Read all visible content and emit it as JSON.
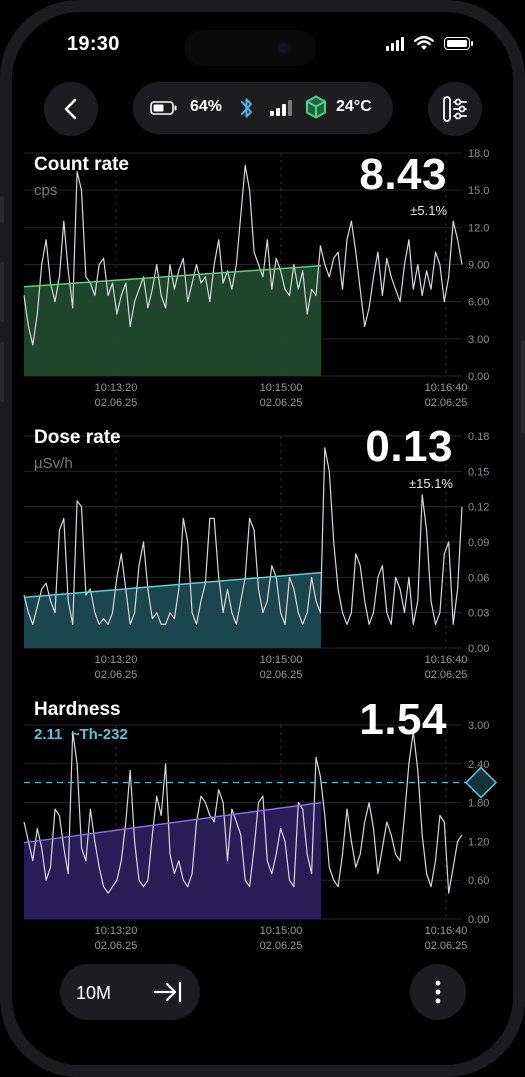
{
  "status_bar": {
    "time": "19:30"
  },
  "header": {
    "battery_percent": "64%",
    "temperature": "24°C",
    "icons": [
      "back-arrow-icon",
      "battery-icon",
      "bluetooth-icon",
      "signal-bars-icon",
      "cube-icon",
      "sliders-icon"
    ]
  },
  "panels": {
    "count": {
      "title": "Count rate",
      "unit": "cps",
      "value": "8.43",
      "error": "±5.1%",
      "y_ticks": [
        "18.0",
        "15.0",
        "12.0",
        "9.00",
        "6.00",
        "3.00",
        "0.00"
      ]
    },
    "dose": {
      "title": "Dose rate",
      "unit": "µSv/h",
      "value": "0.13",
      "error": "±15.1%",
      "y_ticks": [
        "0.18",
        "0.15",
        "0.12",
        "0.09",
        "0.06",
        "0.03",
        "0.00"
      ]
    },
    "hardness": {
      "title": "Hardness",
      "value": "1.54",
      "marker_value": "2.11",
      "isotope": "~Th-232",
      "y_ticks": [
        "3.00",
        "2.40",
        "1.80",
        "1.20",
        "0.60",
        "0.00"
      ]
    }
  },
  "x_ticks": [
    {
      "time": "10:13:20",
      "date": "02.06.25"
    },
    {
      "time": "10:15:00",
      "date": "02.06.25"
    },
    {
      "time": "10:16:40",
      "date": "02.06.25"
    }
  ],
  "bottom_bar": {
    "range_label": "10M"
  },
  "colors": {
    "count_fill": "#1f4a2c",
    "count_line": "#5fd07f",
    "dose_fill": "#1d4a52",
    "dose_line": "#5ad0e0",
    "hardness_fill": "#2a1f5c",
    "hardness_line": "#8a6cf0",
    "accent": "#57c4dc"
  },
  "chart_data": [
    {
      "type": "line",
      "title": "Count rate",
      "ylabel": "cps",
      "ylim": [
        0,
        18
      ],
      "x_tick_labels": [
        "10:13:20 02.06.25",
        "10:15:00 02.06.25",
        "10:16:40 02.06.25"
      ],
      "series": [
        {
          "values": [
            6.5,
            4.0,
            2.5,
            5.0,
            9.0,
            11.0,
            7.5,
            6.0,
            8.0,
            12.5,
            8.5,
            5.5,
            16.5,
            15.0,
            8.0,
            7.5,
            6.5,
            9.0,
            9.5,
            6.5,
            7.5,
            5.0,
            6.5,
            7.5,
            4.0,
            6.0,
            7.0,
            8.0,
            5.5,
            7.0,
            9.0,
            6.5,
            5.5,
            9.0,
            7.0,
            8.5,
            9.5,
            6.0,
            7.5,
            9.0,
            7.5,
            8.0,
            6.0,
            9.0,
            11.0,
            7.5,
            8.5,
            7.0,
            9.0,
            13.0,
            17.0,
            15.0,
            10.0,
            9.0,
            8.0,
            11.0,
            7.0,
            9.5,
            8.5,
            7.0,
            6.5,
            9.0,
            7.0,
            8.5,
            5.0,
            7.0,
            6.5,
            10.5,
            9.0,
            8.0,
            9.5,
            10.0,
            7.0,
            11.0,
            12.5,
            10.0,
            7.0,
            4.0,
            5.5,
            8.0,
            10.0,
            6.5,
            9.5,
            8.0,
            7.0,
            6.0,
            9.0,
            11.0,
            7.0,
            9.0,
            6.5,
            8.5,
            7.0,
            10.0,
            9.0,
            6.0,
            8.0,
            12.5,
            11.0,
            9.0
          ]
        }
      ],
      "trend": [
        7.2,
        8.9
      ]
    },
    {
      "type": "line",
      "title": "Dose rate",
      "ylabel": "µSv/h",
      "ylim": [
        0,
        0.18
      ],
      "x_tick_labels": [
        "10:13:20 02.06.25",
        "10:15:00 02.06.25",
        "10:16:40 02.06.25"
      ],
      "series": [
        {
          "values": [
            0.045,
            0.03,
            0.02,
            0.035,
            0.05,
            0.055,
            0.04,
            0.03,
            0.1,
            0.11,
            0.04,
            0.02,
            0.125,
            0.12,
            0.045,
            0.05,
            0.03,
            0.02,
            0.025,
            0.02,
            0.03,
            0.06,
            0.08,
            0.05,
            0.02,
            0.03,
            0.07,
            0.09,
            0.05,
            0.025,
            0.03,
            0.02,
            0.02,
            0.03,
            0.025,
            0.05,
            0.11,
            0.09,
            0.03,
            0.02,
            0.04,
            0.055,
            0.11,
            0.11,
            0.06,
            0.03,
            0.05,
            0.03,
            0.02,
            0.04,
            0.06,
            0.11,
            0.1,
            0.05,
            0.03,
            0.04,
            0.07,
            0.06,
            0.03,
            0.02,
            0.06,
            0.05,
            0.03,
            0.02,
            0.03,
            0.06,
            0.04,
            0.03,
            0.17,
            0.15,
            0.09,
            0.05,
            0.03,
            0.02,
            0.03,
            0.08,
            0.07,
            0.04,
            0.02,
            0.03,
            0.06,
            0.07,
            0.03,
            0.02,
            0.06,
            0.05,
            0.03,
            0.06,
            0.02,
            0.04,
            0.13,
            0.1,
            0.04,
            0.02,
            0.03,
            0.08,
            0.09,
            0.02,
            0.05,
            0.12
          ]
        }
      ],
      "trend": [
        0.043,
        0.064
      ]
    },
    {
      "type": "line",
      "title": "Hardness",
      "ylim": [
        0,
        3.0
      ],
      "x_tick_labels": [
        "10:13:20 02.06.25",
        "10:15:00 02.06.25",
        "10:16:40 02.06.25"
      ],
      "reference_line": 2.11,
      "series": [
        {
          "values": [
            1.5,
            1.2,
            0.9,
            1.4,
            1.1,
            0.6,
            0.8,
            1.7,
            1.6,
            1.1,
            0.7,
            2.9,
            2.4,
            1.1,
            0.9,
            1.7,
            1.2,
            0.8,
            0.5,
            0.4,
            0.5,
            0.6,
            0.9,
            1.5,
            2.3,
            1.2,
            0.6,
            0.5,
            0.6,
            1.3,
            1.9,
            1.6,
            2.4,
            1.0,
            0.7,
            0.9,
            0.6,
            0.5,
            0.7,
            1.5,
            1.9,
            1.8,
            1.6,
            1.5,
            2.0,
            1.8,
            0.9,
            1.7,
            1.5,
            1.3,
            0.6,
            0.5,
            1.1,
            1.8,
            1.9,
            0.9,
            0.7,
            1.0,
            1.4,
            1.2,
            0.6,
            0.5,
            1.8,
            1.7,
            1.0,
            0.7,
            2.5,
            2.2,
            1.6,
            0.8,
            0.6,
            0.5,
            1.0,
            1.7,
            1.2,
            0.8,
            1.0,
            1.5,
            1.8,
            1.4,
            0.7,
            1.1,
            1.5,
            1.3,
            1.0,
            0.9,
            1.6,
            2.4,
            2.9,
            2.3,
            1.3,
            0.7,
            0.5,
            0.9,
            1.6,
            1.5,
            0.4,
            0.8,
            1.2,
            1.3
          ]
        }
      ],
      "trend": [
        1.18,
        1.8
      ]
    }
  ]
}
